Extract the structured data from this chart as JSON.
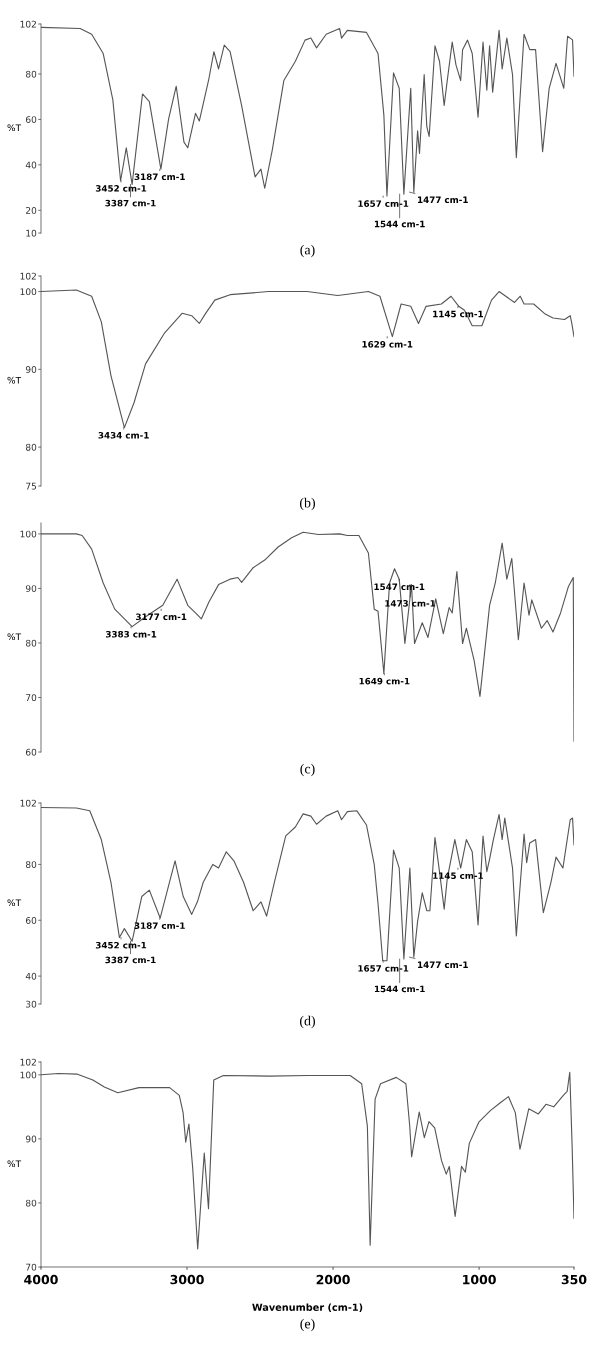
{
  "chart_data": [
    {
      "type": "line",
      "ylabel": "%T",
      "xlim": [
        4000,
        350
      ],
      "ylim": [
        10,
        102
      ],
      "yticks": [
        10,
        20,
        40,
        60,
        80,
        102
      ],
      "tick_labels": "y",
      "series": [
        {
          "color": "#555555",
          "x": [
            4000,
            3732,
            3653,
            3574,
            3508,
            3455,
            3416,
            3376,
            3305,
            3258,
            3179,
            3126,
            3074,
            3021,
            2995,
            2942,
            2916,
            2850,
            2816,
            2784,
            2745,
            2705,
            2626,
            2534,
            2494,
            2468,
            2416,
            2337,
            2258,
            2192,
            2152,
            2113,
            2047,
            1955,
            1942,
            1902,
            1771,
            1692,
            1652,
            1631,
            1586,
            1547,
            1515,
            1468,
            1447,
            1421,
            1408,
            1376,
            1358,
            1342,
            1302,
            1271,
            1239,
            1218,
            1184,
            1158,
            1126,
            1113,
            1079,
            1047,
            1007,
            973,
            947,
            928,
            907,
            863,
            842,
            810,
            771,
            745,
            692,
            653,
            613,
            565,
            520,
            473,
            420,
            394,
            360,
            350
          ],
          "values": [
            100.5,
            100,
            97.5,
            89,
            68.6,
            33,
            47.5,
            31.4,
            71.2,
            67.8,
            38.1,
            60.2,
            74.6,
            50,
            47.5,
            62.7,
            59.3,
            78,
            89.8,
            82.2,
            92.7,
            89.8,
            66.1,
            34.7,
            38.1,
            29.7,
            46.6,
            77.1,
            85.6,
            94.9,
            95.8,
            91.5,
            97.5,
            100,
            95.8,
            99.2,
            98.3,
            89,
            61.9,
            26.3,
            80.5,
            73.7,
            27.1,
            73.7,
            28,
            55,
            45,
            79.7,
            56.8,
            52.5,
            92.4,
            85.6,
            66.1,
            77.1,
            94,
            83.9,
            77.1,
            90.7,
            94.9,
            89,
            61,
            94,
            72.9,
            92.4,
            72,
            99.2,
            82.2,
            95.8,
            79.7,
            43.2,
            97.5,
            90.7,
            90.7,
            45.8,
            73.7,
            84.7,
            73.7,
            96.6,
            95,
            79
          ]
        }
      ],
      "annotations": [
        {
          "text": "3452 cm-1",
          "x": 3452,
          "y": 33
        },
        {
          "text": "3387 cm-1",
          "x": 3387,
          "y": 31.4
        },
        {
          "text": "3187 cm-1",
          "x": 3187,
          "y": 38.1
        },
        {
          "text": "1657 cm-1",
          "x": 1657,
          "y": 26.3
        },
        {
          "text": "1544 cm-1",
          "x": 1544,
          "y": 27.1
        },
        {
          "text": "1477 cm-1",
          "x": 1477,
          "y": 28
        },
        "(a)"
      ]
    },
    {
      "type": "line",
      "ylabel": "%T",
      "xlim": [
        4000,
        350
      ],
      "ylim": [
        75,
        102
      ],
      "yticks": [
        75,
        80,
        90,
        100,
        102
      ],
      "tick_labels": "y",
      "series": [
        {
          "color": "#555555",
          "x": [
            4000,
            3758,
            3653,
            3587,
            3521,
            3429,
            3363,
            3284,
            3153,
            3034,
            2968,
            2916,
            2876,
            2810,
            2705,
            2442,
            2179,
            1968,
            1758,
            1679,
            1594,
            1534,
            1468,
            1415,
            1363,
            1258,
            1192,
            1139,
            1100,
            1047,
            981,
            915,
            863,
            757,
            718,
            692,
            626,
            547,
            494,
            415,
            376,
            365,
            350
          ],
          "values": [
            100,
            100.2,
            99.4,
            96.1,
            89.2,
            82.5,
            85.7,
            90.7,
            94.7,
            97.2,
            96.9,
            95.9,
            97.1,
            98.9,
            99.6,
            100,
            100,
            99.5,
            100,
            99.4,
            94.2,
            98.4,
            98.1,
            95.9,
            98.1,
            98.4,
            99.4,
            98.1,
            97.6,
            95.6,
            95.6,
            98.9,
            100,
            98.6,
            99.4,
            98.4,
            98.4,
            97.1,
            96.6,
            96.4,
            96.9,
            95.9,
            94.2
          ]
        }
      ],
      "annotations": [
        {
          "text": "3434 cm-1",
          "x": 3434,
          "y": 82.5
        },
        {
          "text": "1629 cm-1",
          "x": 1629,
          "y": 94.2
        },
        {
          "text": "1145 cm-1",
          "x": 1145,
          "y": 98.1
        },
        "(b)"
      ]
    },
    {
      "type": "line",
      "ylabel": "%T",
      "xlim": [
        4000,
        350
      ],
      "ylim": [
        60,
        102
      ],
      "yticks": [
        60,
        70,
        80,
        90,
        100
      ],
      "tick_labels": "y",
      "series": [
        {
          "color": "#555555",
          "x": [
            4000,
            3758,
            3718,
            3653,
            3574,
            3495,
            3376,
            3284,
            3166,
            3068,
            2995,
            2942,
            2902,
            2850,
            2784,
            2705,
            2652,
            2626,
            2547,
            2468,
            2376,
            2284,
            2205,
            2100,
            1955,
            1902,
            1823,
            1758,
            1718,
            1692,
            1652,
            1613,
            1579,
            1547,
            1508,
            1463,
            1442,
            1389,
            1350,
            1297,
            1245,
            1205,
            1184,
            1152,
            1113,
            1087,
            1034,
            994,
            928,
            889,
            842,
            810,
            776,
            731,
            692,
            658,
            639,
            573,
            534,
            494,
            442,
            389,
            355,
            350
          ],
          "values": [
            100,
            100,
            99.7,
            97.2,
            91,
            86.2,
            83,
            84.8,
            86.9,
            91.7,
            86.9,
            85.5,
            84.4,
            87.5,
            90.7,
            91.7,
            92,
            91.1,
            93.8,
            95.2,
            97.6,
            99.3,
            100.3,
            99.9,
            100,
            99.7,
            99.7,
            96.5,
            86.2,
            85.8,
            74.4,
            91,
            93.6,
            91.7,
            79.9,
            90.7,
            79.9,
            83.7,
            81,
            88.1,
            81.7,
            86.5,
            85.5,
            93.1,
            79.9,
            82.7,
            76.8,
            70.2,
            86.9,
            91,
            98.3,
            91.7,
            95.5,
            80.6,
            91,
            85.1,
            87.9,
            82.7,
            84.1,
            82,
            85.5,
            90.3,
            92,
            62
          ]
        }
      ],
      "annotations": [
        {
          "text": "3383 cm-1",
          "x": 3383,
          "y": 83
        },
        {
          "text": "3177 cm-1",
          "x": 3177,
          "y": 86.2
        },
        {
          "text": "1649 cm-1",
          "x": 1649,
          "y": 74.4
        },
        {
          "text": "1547 cm-1",
          "x": 1547,
          "y": 91.7
        },
        {
          "text": "1473 cm-1",
          "x": 1473,
          "y": 90.7
        },
        "(c)"
      ]
    },
    {
      "type": "line",
      "ylabel": "%T",
      "xlim": [
        4000,
        350
      ],
      "ylim": [
        30,
        102
      ],
      "yticks": [
        30,
        40,
        60,
        80,
        102
      ],
      "tick_labels": "y",
      "series": [
        {
          "color": "#555555",
          "x": [
            4000,
            3758,
            3666,
            3587,
            3521,
            3463,
            3429,
            3376,
            3310,
            3258,
            3184,
            3139,
            3082,
            3026,
            2968,
            2929,
            2889,
            2824,
            2784,
            2731,
            2679,
            2613,
            2547,
            2494,
            2455,
            2402,
            2324,
            2258,
            2205,
            2152,
            2113,
            2047,
            1968,
            1942,
            1902,
            1837,
            1771,
            1718,
            1692,
            1660,
            1631,
            1586,
            1547,
            1515,
            1474,
            1447,
            1421,
            1389,
            1358,
            1337,
            1302,
            1271,
            1239,
            1218,
            1166,
            1126,
            1087,
            1047,
            1007,
            973,
            947,
            928,
            902,
            863,
            842,
            824,
            771,
            745,
            692,
            674,
            653,
            613,
            560,
            508,
            473,
            426,
            376,
            360,
            350
          ],
          "values": [
            100.4,
            100.2,
            99.2,
            88.9,
            73.6,
            53.8,
            57,
            52.5,
            68.5,
            70.8,
            60.8,
            69.8,
            81.3,
            68.5,
            62.1,
            66.6,
            73.6,
            80,
            78.7,
            84.5,
            81.3,
            73.6,
            63.4,
            66.6,
            61.5,
            73.6,
            90.2,
            93.4,
            98.1,
            97.3,
            94.4,
            97.3,
            99.2,
            96,
            98.9,
            99.2,
            94.1,
            80,
            65.9,
            45.5,
            45.5,
            85.1,
            78.7,
            46.1,
            78.7,
            46.8,
            59.6,
            69.8,
            63.4,
            63.4,
            89.6,
            77.4,
            64,
            74.9,
            88.9,
            78.7,
            88.9,
            84.5,
            58.3,
            90.2,
            77.4,
            81.9,
            88.9,
            97.9,
            88.9,
            96.6,
            78.7,
            54.4,
            90.9,
            80.6,
            87.7,
            88.9,
            62.7,
            73.6,
            82.6,
            78.7,
            96,
            96.6,
            87
          ]
        }
      ],
      "annotations": [
        {
          "text": "3452 cm-1",
          "x": 3452,
          "y": 53.8
        },
        {
          "text": "3387 cm-1",
          "x": 3387,
          "y": 52.5
        },
        {
          "text": "3187 cm-1",
          "x": 3187,
          "y": 60.8
        },
        {
          "text": "1657 cm-1",
          "x": 1657,
          "y": 45.5
        },
        {
          "text": "1544 cm-1",
          "x": 1544,
          "y": 46.1
        },
        {
          "text": "1477 cm-1",
          "x": 1477,
          "y": 46.8
        },
        {
          "text": "1145 cm-1",
          "x": 1145,
          "y": 78.7
        },
        "(d)"
      ]
    },
    {
      "type": "line",
      "ylabel": "%T",
      "xlabel": "Wavenumber (cm-1)",
      "xlim": [
        4000,
        350
      ],
      "xticks": [
        4000,
        3000,
        2000,
        1000,
        350
      ],
      "ylim": [
        70,
        102
      ],
      "yticks": [
        70,
        80,
        90,
        100,
        102
      ],
      "series": [
        {
          "color": "#555555",
          "x": [
            4000,
            3882,
            3750,
            3645,
            3566,
            3474,
            3329,
            3119,
            3053,
            3027,
            3009,
            2987,
            2961,
            2927,
            2882,
            2853,
            2817,
            2751,
            2435,
            2172,
            1883,
            1804,
            1765,
            1746,
            1712,
            1675,
            1567,
            1501,
            1475,
            1462,
            1410,
            1375,
            1343,
            1304,
            1257,
            1225,
            1204,
            1164,
            1120,
            1094,
            1067,
            1002,
            923,
            857,
            799,
            752,
            720,
            660,
            594,
            542,
            489,
            423,
            397,
            379,
            363,
            350
          ],
          "values": [
            100,
            100.2,
            100.1,
            99.2,
            98.1,
            97.2,
            98,
            98,
            96.8,
            94.1,
            89.5,
            92.3,
            85.4,
            72.8,
            87.8,
            79.1,
            99.2,
            99.9,
            99.8,
            99.9,
            99.9,
            98.6,
            92,
            73.4,
            96.2,
            98.6,
            99.6,
            98.6,
            92,
            87.2,
            94.2,
            90.2,
            92.7,
            91.7,
            86.6,
            84.5,
            85.7,
            77.9,
            85.7,
            84.8,
            89.3,
            92.6,
            94.4,
            95.6,
            96.6,
            94.1,
            88.4,
            94.7,
            93.9,
            95.4,
            95,
            96.8,
            97.4,
            100.4,
            89,
            77.6
          ]
        }
      ],
      "annotations": [
        "(e)"
      ]
    }
  ]
}
